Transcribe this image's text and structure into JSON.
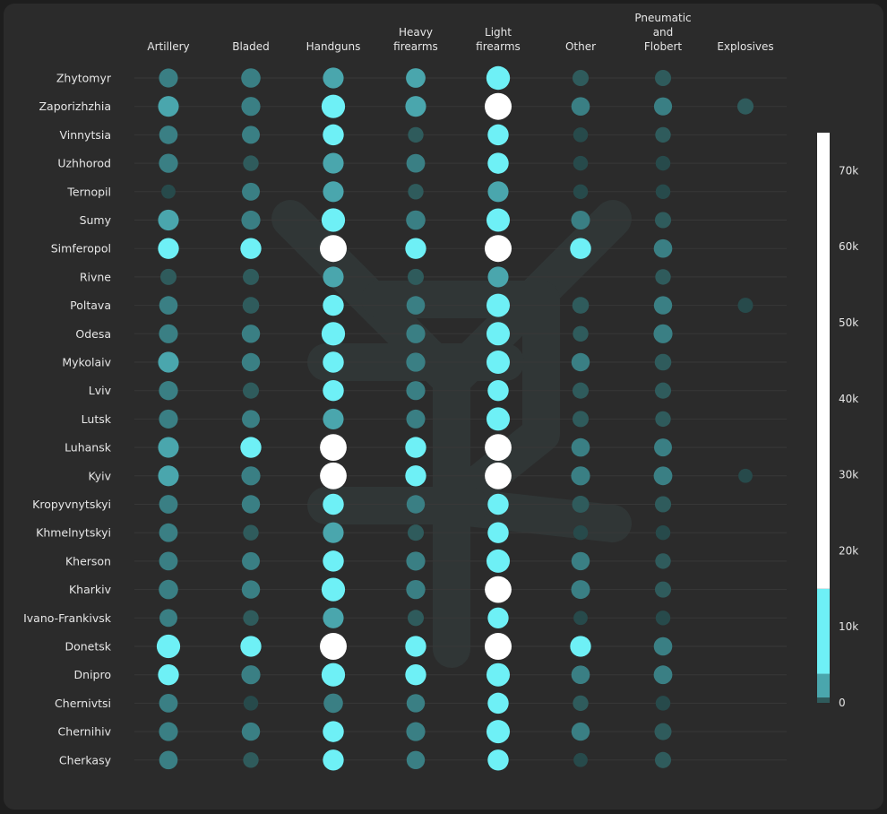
{
  "colors": {
    "background": "#2b2b2b",
    "dim": "#2f5b5c",
    "mid": "#4aa6ad",
    "bright": "#6ef0f6",
    "white": "#ffffff",
    "watermark": "#303636"
  },
  "watermark_icon": "trident-emblem-icon",
  "chart_data": {
    "type": "dot-matrix",
    "title": "",
    "columns": [
      "Artillery",
      "Bladed",
      "Handguns",
      "Heavy firearms",
      "Light firearms",
      "Other",
      "Pneumatic and Flobert",
      "Explosives"
    ],
    "rows": [
      "Zhytomyr",
      "Zaporizhzhia",
      "Vinnytsia",
      "Uzhhorod",
      "Ternopil",
      "Sumy",
      "Simferopol",
      "Rivne",
      "Poltava",
      "Odesa",
      "Mykolaiv",
      "Lviv",
      "Lutsk",
      "Luhansk",
      "Kyiv",
      "Kropyvnytskyi",
      "Khmelnytskyi",
      "Kherson",
      "Kharkiv",
      "Ivano-Frankivsk",
      "Donetsk",
      "Dnipro",
      "Chernivtsi",
      "Chernihiv",
      "Cherkasy"
    ],
    "values": [
      [
        1500,
        1800,
        3500,
        2000,
        14000,
        400,
        400,
        0
      ],
      [
        3500,
        1500,
        13000,
        3500,
        70000,
        1200,
        1000,
        400
      ],
      [
        1200,
        900,
        4000,
        300,
        4000,
        200,
        300,
        0
      ],
      [
        1600,
        300,
        3500,
        1300,
        4000,
        200,
        200,
        0
      ],
      [
        150,
        900,
        3500,
        300,
        3500,
        200,
        200,
        0
      ],
      [
        3500,
        1500,
        13000,
        1800,
        12000,
        1400,
        400,
        0
      ],
      [
        3800,
        3800,
        65000,
        3800,
        70000,
        4000,
        1200,
        0
      ],
      [
        400,
        400,
        3500,
        400,
        3500,
        0,
        300,
        0
      ],
      [
        1200,
        500,
        3800,
        1200,
        12000,
        500,
        1100,
        250
      ],
      [
        1500,
        1100,
        13000,
        1500,
        12000,
        300,
        1500,
        0
      ],
      [
        3500,
        1100,
        4000,
        1600,
        12000,
        1100,
        500,
        0
      ],
      [
        1600,
        400,
        4000,
        1500,
        4000,
        400,
        400,
        0
      ],
      [
        1500,
        900,
        3500,
        1400,
        12000,
        400,
        300,
        0
      ],
      [
        3500,
        3800,
        60000,
        3800,
        60000,
        1200,
        900,
        0
      ],
      [
        3500,
        1500,
        60000,
        3800,
        60000,
        1500,
        1300,
        150
      ],
      [
        1300,
        1100,
        4000,
        1100,
        4000,
        600,
        400,
        0
      ],
      [
        1300,
        300,
        3500,
        400,
        4000,
        200,
        200,
        0
      ],
      [
        1300,
        900,
        4000,
        1500,
        12000,
        1100,
        300,
        0
      ],
      [
        1800,
        1100,
        13000,
        1600,
        60000,
        1400,
        400,
        0
      ],
      [
        900,
        300,
        3500,
        400,
        3800,
        150,
        200,
        0
      ],
      [
        13000,
        3800,
        65000,
        3800,
        70000,
        3800,
        1200,
        0
      ],
      [
        3800,
        1500,
        13000,
        3800,
        12000,
        1200,
        1300,
        0
      ],
      [
        1300,
        200,
        1800,
        1100,
        4000,
        300,
        200,
        0
      ],
      [
        1500,
        1100,
        4000,
        1500,
        12000,
        1100,
        600,
        0
      ],
      [
        1200,
        300,
        3800,
        1100,
        4000,
        150,
        400,
        0
      ]
    ],
    "colorbar": {
      "min": 0,
      "max": 75000,
      "ticks": [
        0,
        10000,
        20000,
        30000,
        40000,
        50000,
        60000,
        70000
      ],
      "tick_labels": [
        "0",
        "10k",
        "20k",
        "30k",
        "40k",
        "50k",
        "60k",
        "70k"
      ],
      "bands": [
        {
          "from": 0,
          "to": 700,
          "color": "#2f5b5c"
        },
        {
          "from": 700,
          "to": 3800,
          "color": "#4aa6ad"
        },
        {
          "from": 3800,
          "to": 15000,
          "color": "#6ef0f6"
        },
        {
          "from": 15000,
          "to": 75000,
          "color": "#ffffff"
        }
      ]
    }
  }
}
